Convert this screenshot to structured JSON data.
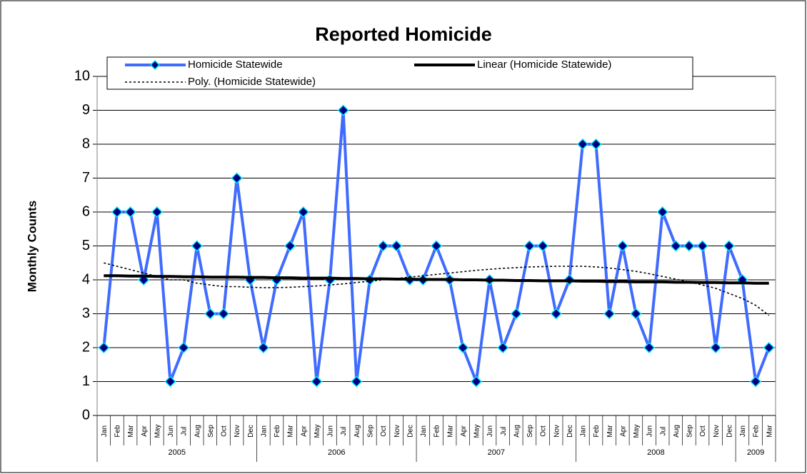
{
  "chart_data": {
    "type": "line",
    "title": "Reported Homicide",
    "y_label": "Monthly Counts",
    "categories": [
      "Jan",
      "Feb",
      "Mar",
      "Apr",
      "May",
      "Jun",
      "Jul",
      "Aug",
      "Sep",
      "Oct",
      "Nov",
      "Dec",
      "Jan",
      "Feb",
      "Mar",
      "Apr",
      "May",
      "Jun",
      "Jul",
      "Aug",
      "Sep",
      "Oct",
      "Nov",
      "Dec",
      "Jan",
      "Feb",
      "Mar",
      "Apr",
      "May",
      "Jun",
      "Jul",
      "Aug",
      "Sep",
      "Oct",
      "Nov",
      "Dec",
      "Jan",
      "Feb",
      "Mar",
      "Apr",
      "May",
      "Jun",
      "Jul",
      "Aug",
      "Sep",
      "Oct",
      "Nov",
      "Dec",
      "Jan",
      "Feb",
      "Mar"
    ],
    "category_groups": [
      "2005",
      null,
      null,
      null,
      null,
      null,
      null,
      null,
      null,
      null,
      null,
      null,
      "2006",
      null,
      null,
      null,
      null,
      null,
      null,
      null,
      null,
      null,
      null,
      null,
      "2007",
      null,
      null,
      null,
      null,
      null,
      null,
      null,
      null,
      null,
      null,
      null,
      "2008",
      null,
      null,
      null,
      null,
      null,
      null,
      null,
      null,
      null,
      null,
      null,
      "2009",
      null,
      null
    ],
    "series": [
      {
        "name": "Homicide Statewide",
        "color": "#3f6bff",
        "marker_color": "#000080",
        "marker_edge": "#00e5ff",
        "style": "marker-line",
        "values": [
          2,
          6,
          6,
          4,
          6,
          1,
          2,
          5,
          3,
          3,
          7,
          4,
          2,
          4,
          5,
          6,
          1,
          4,
          9,
          1,
          4,
          5,
          5,
          4,
          4,
          5,
          4,
          2,
          1,
          4,
          2,
          3,
          5,
          5,
          3,
          4,
          8,
          8,
          3,
          5,
          3,
          2,
          6,
          5,
          5,
          5,
          2,
          5,
          4,
          1,
          2
        ]
      },
      {
        "name": "Linear (Homicide Statewide)",
        "color": "#000000",
        "style": "solid",
        "values": [
          4.12,
          4.12,
          4.11,
          4.11,
          4.1,
          4.1,
          4.09,
          4.09,
          4.08,
          4.08,
          4.08,
          4.07,
          4.07,
          4.06,
          4.06,
          4.05,
          4.05,
          4.05,
          4.04,
          4.04,
          4.03,
          4.03,
          4.02,
          4.02,
          4.01,
          4.01,
          4.01,
          4.0,
          4.0,
          3.99,
          3.99,
          3.98,
          3.98,
          3.97,
          3.97,
          3.97,
          3.96,
          3.96,
          3.95,
          3.95,
          3.94,
          3.94,
          3.94,
          3.93,
          3.93,
          3.92,
          3.92,
          3.91,
          3.91,
          3.9,
          3.9
        ]
      },
      {
        "name": "Poly. (Homicide Statewide)",
        "color": "#000000",
        "style": "dotted",
        "values": [
          4.5,
          4.4,
          4.3,
          4.2,
          4.1,
          4.0,
          4.0,
          3.9,
          3.85,
          3.8,
          3.8,
          3.78,
          3.77,
          3.77,
          3.78,
          3.8,
          3.82,
          3.85,
          3.88,
          3.92,
          3.96,
          4.0,
          4.04,
          4.08,
          4.12,
          4.16,
          4.2,
          4.24,
          4.28,
          4.31,
          4.34,
          4.36,
          4.38,
          4.39,
          4.4,
          4.4,
          4.4,
          4.38,
          4.35,
          4.3,
          4.25,
          4.18,
          4.1,
          4.02,
          3.94,
          3.85,
          3.75,
          3.6,
          3.45,
          3.25,
          2.95
        ]
      }
    ],
    "ylim": [
      0,
      10
    ],
    "yticks": [
      0,
      1,
      2,
      3,
      4,
      5,
      6,
      7,
      8,
      9,
      10
    ],
    "grid": true,
    "legend": "top"
  }
}
